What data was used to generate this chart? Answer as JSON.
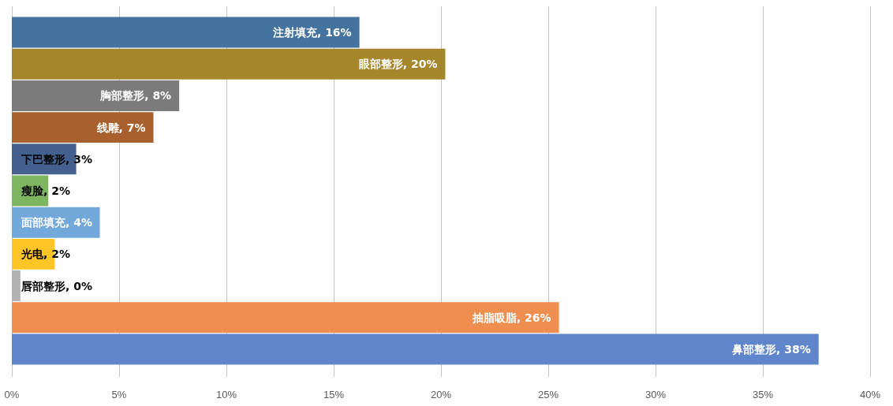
{
  "chart_data": {
    "type": "bar",
    "orientation": "horizontal",
    "categories": [
      "注射填充",
      "眼部整形",
      "胸部整形",
      "线雕",
      "下巴整形",
      "瘦脸",
      "面部填充",
      "光电",
      "唇部整形",
      "抽脂吸脂",
      "鼻部整形"
    ],
    "values": [
      16.2,
      20.2,
      7.8,
      6.6,
      3.0,
      1.7,
      4.1,
      2.0,
      0.4,
      25.5,
      37.6
    ],
    "value_labels": [
      ", 16%",
      ", 20%",
      ", 8%",
      ", 7%",
      ", 3%",
      ", 2%",
      ", 4%",
      ", 2%",
      ", 0%",
      ", 26%",
      ", 38%"
    ],
    "colors": [
      "#43739e",
      "#a5862a",
      "#7b7b7b",
      "#a9602f",
      "#43608f",
      "#7eb561",
      "#72a8da",
      "#ffc425",
      "#b3b3b3",
      "#ee8f4f",
      "#5f86cb"
    ],
    "xlim": [
      0,
      40
    ],
    "xticks": [
      {
        "value": 0,
        "label": "0%"
      },
      {
        "value": 5,
        "label": "5%"
      },
      {
        "value": 10,
        "label": "10%"
      },
      {
        "value": 15,
        "label": "15%"
      },
      {
        "value": 20,
        "label": "20%"
      },
      {
        "value": 25,
        "label": "25%"
      },
      {
        "value": 30,
        "label": "30%"
      },
      {
        "value": 35,
        "label": "35%"
      },
      {
        "value": 40,
        "label": "40%"
      }
    ],
    "grid": "x",
    "tick_labels": "x"
  }
}
